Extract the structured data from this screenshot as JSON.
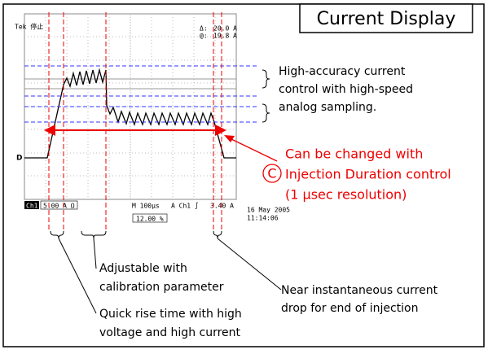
{
  "title": "Current Display",
  "scope": {
    "brand": "Tek 停止",
    "cursor": [
      "Δ:",
      "20.0 A",
      "@:",
      "19.8 A"
    ],
    "ground_marker": "D",
    "channel": "Ch1",
    "scale": "5.00 A Ω",
    "timebase": "M 100µs",
    "trigger": "A Ch1 ∫",
    "trigger_level": "3.40 A",
    "position": "12.00 %",
    "date": "16 May 2005",
    "time": "11:14:06"
  },
  "annotations": {
    "accuracy": [
      "High-accuracy current",
      "control with high-speed",
      "analog sampling."
    ],
    "duration": {
      "marker": "C",
      "lines": [
        "Can be changed with",
        "Injection Duration control",
        "(1 µsec resolution)"
      ]
    },
    "calibration": [
      "Adjustable with",
      "calibration parameter"
    ],
    "rise": [
      "Quick rise time with high",
      "voltage and high current"
    ],
    "drop": [
      "Near instantaneous current",
      "drop for end of injection"
    ]
  }
}
